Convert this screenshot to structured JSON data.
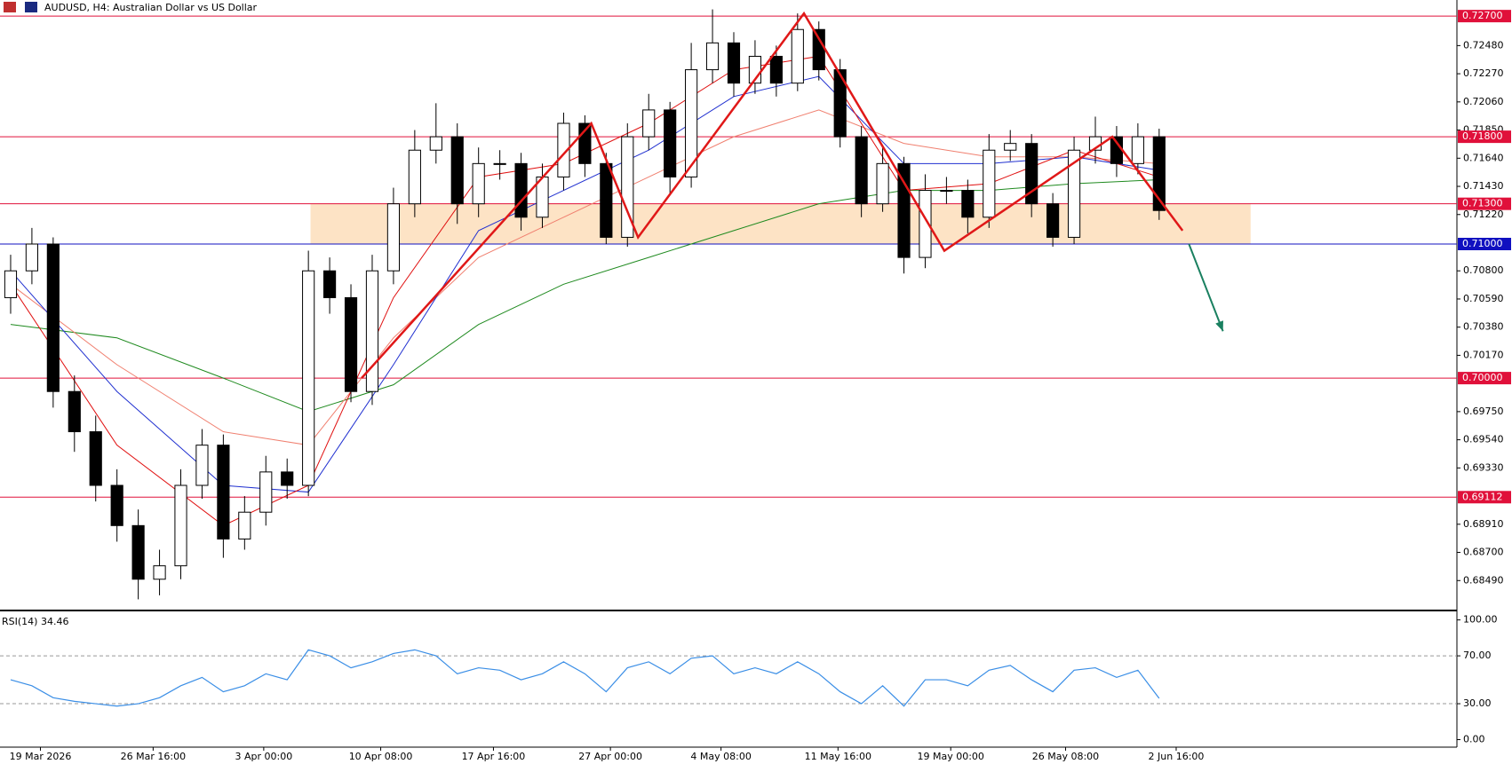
{
  "chart_data": {
    "type": "candlestick",
    "title": "AUDUSD, H4:  Australian Dollar vs US Dollar",
    "xlim": [
      -0.5,
      68
    ],
    "xticks": [
      {
        "value": 1.4,
        "label": "19 Mar 2026"
      },
      {
        "value": 6.7,
        "label": "26 Mar 16:00"
      },
      {
        "value": 11.9,
        "label": "3 Apr 00:00"
      },
      {
        "value": 17.4,
        "label": "10 Apr 08:00"
      },
      {
        "value": 22.7,
        "label": "17 Apr 16:00"
      },
      {
        "value": 28.2,
        "label": "27 Apr 00:00"
      },
      {
        "value": 33.4,
        "label": "4 May 08:00"
      },
      {
        "value": 38.9,
        "label": "11 May 16:00"
      },
      {
        "value": 44.2,
        "label": "19 May 00:00"
      },
      {
        "value": 49.6,
        "label": "26 May 08:00"
      },
      {
        "value": 54.8,
        "label": "2 Jun 16:00"
      }
    ],
    "ylim": [
      0.6828,
      0.7282
    ],
    "yticks": [
      {
        "value": 0.7248,
        "label": "0.72480"
      },
      {
        "value": 0.7227,
        "label": "0.72270"
      },
      {
        "value": 0.7206,
        "label": "0.72060"
      },
      {
        "value": 0.7185,
        "label": "0.71850"
      },
      {
        "value": 0.7164,
        "label": "0.71640"
      },
      {
        "value": 0.7143,
        "label": "0.71430"
      },
      {
        "value": 0.7122,
        "label": "0.71220"
      },
      {
        "value": 0.708,
        "label": "0.70800"
      },
      {
        "value": 0.7059,
        "label": "0.70590"
      },
      {
        "value": 0.7038,
        "label": "0.70380"
      },
      {
        "value": 0.7017,
        "label": "0.70170"
      },
      {
        "value": 0.6975,
        "label": "0.69750"
      },
      {
        "value": 0.6954,
        "label": "0.69540"
      },
      {
        "value": 0.6933,
        "label": "0.69330"
      },
      {
        "value": 0.6891,
        "label": "0.68910"
      },
      {
        "value": 0.687,
        "label": "0.68700"
      },
      {
        "value": 0.6849,
        "label": "0.68490"
      }
    ],
    "open": [
      0.706,
      0.708,
      0.71,
      0.699,
      0.696,
      0.692,
      0.689,
      0.685,
      0.686,
      0.692,
      0.695,
      0.688,
      0.69,
      0.693,
      0.692,
      0.708,
      0.706,
      0.699,
      0.708,
      0.713,
      0.717,
      0.718,
      0.713,
      0.716,
      0.716,
      0.712,
      0.715,
      0.719,
      0.716,
      0.7105,
      0.718,
      0.72,
      0.715,
      0.723,
      0.725,
      0.722,
      0.724,
      0.722,
      0.726,
      0.723,
      0.718,
      0.713,
      0.716,
      0.709,
      0.714,
      0.714,
      0.712,
      0.717,
      0.7175,
      0.713,
      0.7105,
      0.717,
      0.718,
      0.716,
      0.718
    ],
    "high": [
      0.7092,
      0.7112,
      0.7105,
      0.7002,
      0.6972,
      0.6932,
      0.6902,
      0.6872,
      0.6932,
      0.6962,
      0.6958,
      0.6912,
      0.6942,
      0.694,
      0.7095,
      0.709,
      0.707,
      0.7092,
      0.7142,
      0.7185,
      0.7205,
      0.719,
      0.7172,
      0.717,
      0.7168,
      0.716,
      0.7198,
      0.7196,
      0.7168,
      0.719,
      0.7212,
      0.7206,
      0.725,
      0.7275,
      0.7258,
      0.7252,
      0.7248,
      0.7272,
      0.7266,
      0.7238,
      0.7188,
      0.7172,
      0.7165,
      0.7152,
      0.715,
      0.7148,
      0.7182,
      0.7185,
      0.7182,
      0.7138,
      0.718,
      0.7195,
      0.7188,
      0.719,
      0.7186
    ],
    "low": [
      0.7048,
      0.707,
      0.6978,
      0.6945,
      0.6908,
      0.6878,
      0.6835,
      0.6838,
      0.685,
      0.691,
      0.6866,
      0.6872,
      0.689,
      0.691,
      0.6912,
      0.7048,
      0.6982,
      0.698,
      0.707,
      0.712,
      0.716,
      0.7115,
      0.712,
      0.7148,
      0.711,
      0.7112,
      0.714,
      0.715,
      0.71,
      0.7098,
      0.717,
      0.7138,
      0.7142,
      0.722,
      0.721,
      0.7212,
      0.721,
      0.7214,
      0.7222,
      0.7172,
      0.712,
      0.7124,
      0.7078,
      0.7082,
      0.713,
      0.7108,
      0.7112,
      0.7162,
      0.712,
      0.7098,
      0.71,
      0.716,
      0.715,
      0.7152,
      0.7118
    ],
    "close": [
      0.708,
      0.71,
      0.699,
      0.696,
      0.692,
      0.689,
      0.685,
      0.686,
      0.692,
      0.695,
      0.688,
      0.69,
      0.693,
      0.692,
      0.708,
      0.706,
      0.699,
      0.708,
      0.713,
      0.717,
      0.718,
      0.713,
      0.716,
      0.716,
      0.712,
      0.715,
      0.719,
      0.716,
      0.7105,
      0.718,
      0.72,
      0.715,
      0.723,
      0.725,
      0.722,
      0.724,
      0.722,
      0.726,
      0.723,
      0.718,
      0.713,
      0.716,
      0.709,
      0.714,
      0.714,
      0.712,
      0.717,
      0.7175,
      0.713,
      0.7105,
      0.717,
      0.718,
      0.716,
      0.718,
      0.7125
    ],
    "moving_averages": [
      {
        "color": "#1f8a1f",
        "x": [
          0,
          5,
          10,
          14,
          18,
          22,
          26,
          30,
          34,
          38,
          42,
          46,
          50,
          54
        ],
        "values": [
          0.704,
          0.703,
          0.7,
          0.6975,
          0.6995,
          0.704,
          0.707,
          0.709,
          0.711,
          0.713,
          0.714,
          0.714,
          0.7145,
          0.7148
        ]
      },
      {
        "color": "#f08070",
        "x": [
          0,
          5,
          10,
          14,
          18,
          22,
          26,
          30,
          34,
          38,
          42,
          46,
          50,
          54
        ],
        "values": [
          0.707,
          0.701,
          0.696,
          0.695,
          0.703,
          0.709,
          0.712,
          0.715,
          0.718,
          0.72,
          0.7175,
          0.7165,
          0.7165,
          0.716
        ]
      },
      {
        "color": "#2030d0",
        "x": [
          0,
          5,
          10,
          14,
          18,
          22,
          26,
          30,
          34,
          38,
          42,
          46,
          50,
          54
        ],
        "values": [
          0.708,
          0.699,
          0.692,
          0.6915,
          0.701,
          0.711,
          0.714,
          0.717,
          0.721,
          0.7225,
          0.716,
          0.716,
          0.7165,
          0.7155
        ]
      },
      {
        "color": "#e01010",
        "x": [
          0,
          5,
          10,
          14,
          18,
          22,
          26,
          30,
          34,
          38,
          42,
          46,
          50,
          54
        ],
        "values": [
          0.707,
          0.695,
          0.689,
          0.692,
          0.706,
          0.715,
          0.716,
          0.719,
          0.723,
          0.724,
          0.714,
          0.7145,
          0.717,
          0.715
        ]
      }
    ],
    "levels": [
      {
        "value": 0.727,
        "label": "0.72700",
        "color": "#e0103a"
      },
      {
        "value": 0.718,
        "label": "0.71800",
        "color": "#e0103a"
      },
      {
        "value": 0.713,
        "label": "0.71300",
        "color": "#e0103a"
      },
      {
        "value": 0.71,
        "label": "0.71000",
        "color": "#1010c0"
      },
      {
        "value": 0.7,
        "label": "0.70000",
        "color": "#e0103a"
      },
      {
        "value": 0.69112,
        "label": "0.69112",
        "color": "#e0103a"
      }
    ],
    "zone": {
      "x": [
        14.1,
        58.3
      ],
      "y": [
        0.71,
        0.713
      ],
      "color": "#fde3c5"
    },
    "pattern": {
      "color": "#e01818",
      "x": [
        16.5,
        27.3,
        29.5,
        37.3,
        43.9,
        51.8,
        55.1
      ],
      "y": [
        0.7,
        0.719,
        0.7105,
        0.7272,
        0.7095,
        0.718,
        0.711
      ]
    },
    "arrow": {
      "color": "#1a8060",
      "x": [
        55.4,
        57.0
      ],
      "y": [
        0.71,
        0.7035
      ]
    },
    "rsi": {
      "label": "RSI(14) 34.46",
      "color": "#3a8ee6",
      "ylim": [
        -4.8,
        106.4
      ],
      "yticks": [
        {
          "value": 100,
          "label": "100.00"
        },
        {
          "value": 70,
          "label": "70.00"
        },
        {
          "value": 30,
          "label": "30.00"
        },
        {
          "value": 0,
          "label": "0.00"
        }
      ],
      "levels": [
        70,
        30
      ],
      "values": [
        50,
        45,
        35,
        32,
        30,
        28,
        30,
        35,
        45,
        52,
        40,
        45,
        55,
        50,
        75,
        70,
        60,
        65,
        72,
        75,
        70,
        55,
        60,
        58,
        50,
        55,
        65,
        55,
        40,
        60,
        65,
        55,
        68,
        70,
        55,
        60,
        55,
        65,
        55,
        40,
        30,
        45,
        28,
        50,
        50,
        45,
        58,
        62,
        50,
        40,
        58,
        60,
        52,
        58,
        34.46
      ]
    }
  }
}
